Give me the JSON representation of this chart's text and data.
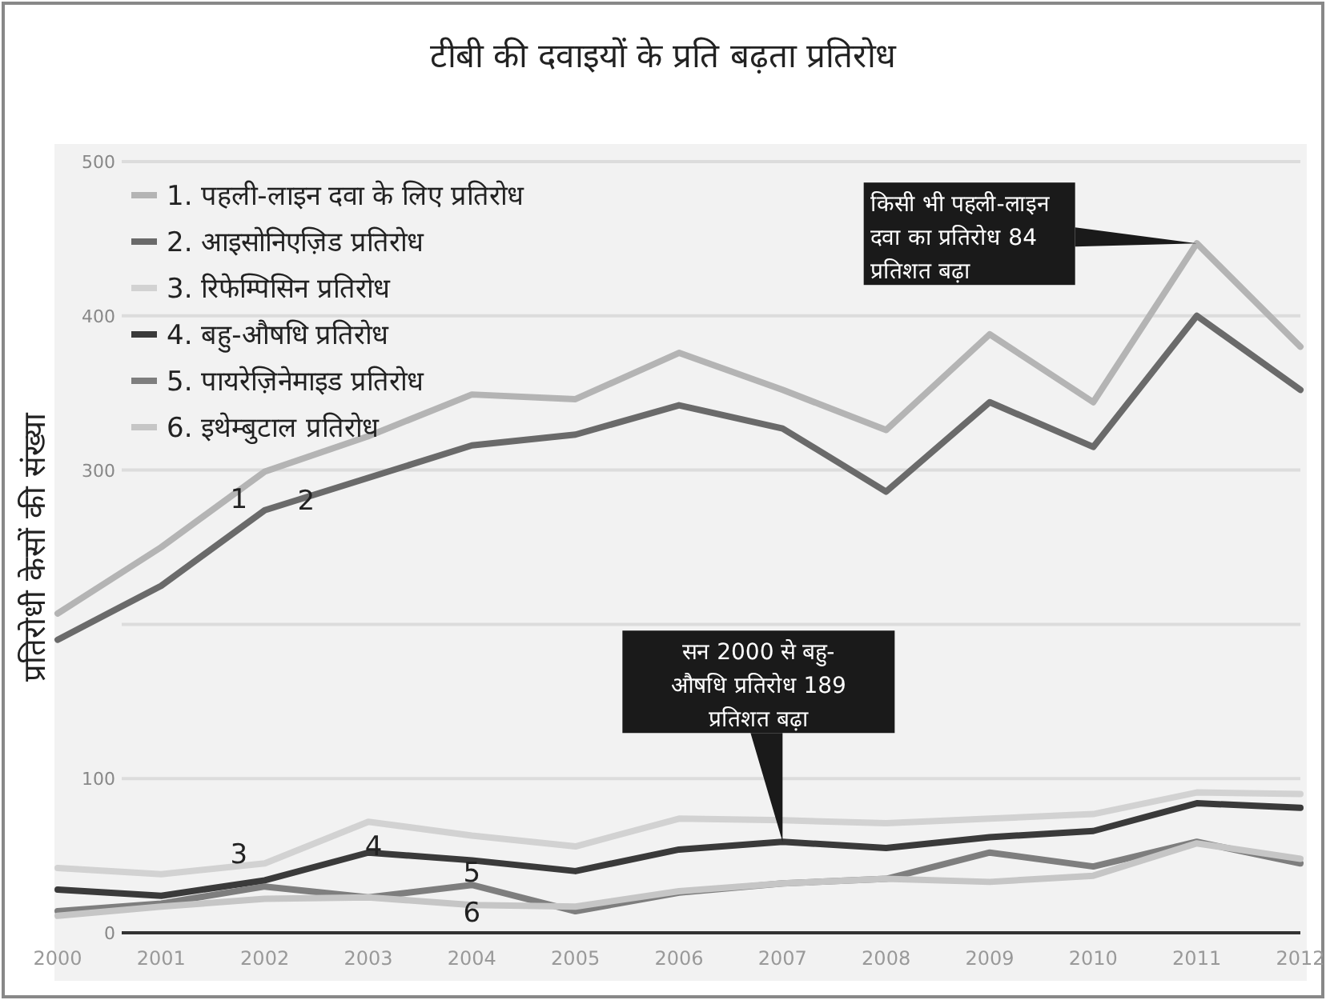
{
  "chart_data": {
    "type": "line",
    "title": "टीबी की दवाइयों के प्रति बढ़ता प्रतिरोध",
    "ylabel": "प्रतिरोधी केसों की संख्या",
    "x": [
      2000,
      2001,
      2002,
      2003,
      2004,
      2005,
      2006,
      2007,
      2008,
      2009,
      2010,
      2011,
      2012
    ],
    "xlim": [
      2000,
      2012
    ],
    "xticks": [
      2000,
      2001,
      2002,
      2003,
      2004,
      2005,
      2006,
      2007,
      2008,
      2009,
      2010,
      2011,
      2012
    ],
    "ylim": [
      0,
      500
    ],
    "yticks": [
      0,
      100,
      {
        "value": 200,
        "label": null
      },
      300,
      400,
      500
    ],
    "grid": "y",
    "legend": "top left",
    "marker": "none",
    "line_style": "solid",
    "series": [
      {
        "name": "1. पहली-लाइन दवा के लिए प्रतिरोध",
        "color": "#b4b4b4",
        "values": [
          207,
          250,
          299,
          322,
          349,
          346,
          376,
          352,
          326,
          388,
          344,
          447,
          380
        ]
      },
      {
        "name": "2. आइसोनिएज़िड प्रतिरोध",
        "color": "#6a6a6a",
        "values": [
          190,
          225,
          274,
          295,
          316,
          323,
          342,
          327,
          286,
          344,
          315,
          400,
          352
        ]
      },
      {
        "name": "3. रिफेम्पिसिन प्रतिरोध",
        "color": "#d2d2d2",
        "values": [
          42,
          38,
          45,
          72,
          63,
          56,
          74,
          73,
          71,
          74,
          77,
          91,
          90
        ]
      },
      {
        "name": "4. बहु-औषधि प्रतिरोध",
        "color": "#3a3a3a",
        "values": [
          28,
          24,
          34,
          52,
          47,
          40,
          54,
          59,
          55,
          62,
          66,
          84,
          81
        ]
      },
      {
        "name": "5. पायरेज़िनेमाइड प्रतिरोध",
        "color": "#7e7e7e",
        "values": [
          14,
          19,
          30,
          23,
          31,
          14,
          26,
          32,
          35,
          52,
          43,
          59,
          45
        ]
      },
      {
        "name": "6. इथेम्बुटाल प्रतिरोध",
        "color": "#c6c6c6",
        "values": [
          11,
          17,
          22,
          23,
          18,
          17,
          27,
          32,
          35,
          33,
          37,
          58,
          48
        ]
      }
    ],
    "annotations": [
      {
        "text": "किसी भी पहली-लाइन\nदवा का प्रतिरोध 84\nप्रतिशत बढ़ा",
        "x": 2011,
        "y": 447
      },
      {
        "text": "सन 2000 से बहु-\nऔषधि प्रतिरोध 189\nप्रतिशत बढ़ा",
        "x": 2007,
        "y": 59
      },
      {
        "text": "1",
        "x": 2001.75,
        "y": 280
      },
      {
        "text": "2",
        "x": 2002.4,
        "y": 279
      },
      {
        "text": "3",
        "x": 2001.75,
        "y": 50
      },
      {
        "text": "4",
        "x": 2003.05,
        "y": 55
      },
      {
        "text": "5",
        "x": 2004.0,
        "y": 38
      },
      {
        "text": "6",
        "x": 2004.0,
        "y": 12
      }
    ]
  }
}
